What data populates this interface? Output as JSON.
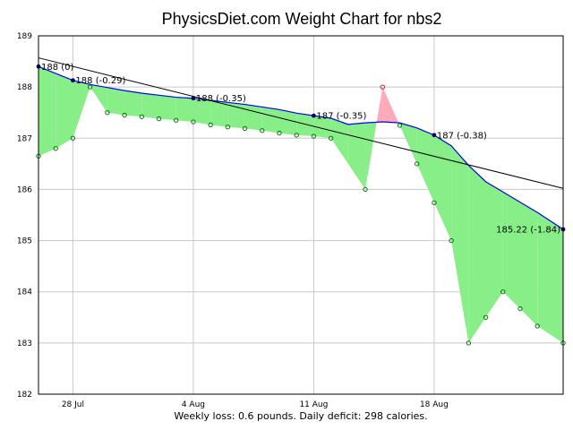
{
  "chart_data": {
    "type": "line",
    "title": "PhysicsDiet.com Weight Chart for nbs2",
    "footer": "Weekly loss: 0.6 pounds. Daily deficit: 298 calories.",
    "ylim": [
      182,
      189
    ],
    "xlim": [
      0,
      30.5
    ],
    "y_ticks": [
      "182",
      "183",
      "184",
      "185",
      "186",
      "187",
      "188",
      "189"
    ],
    "x_ticks": [
      {
        "day": 2,
        "label": "28 Jul"
      },
      {
        "day": 9,
        "label": "4 Aug"
      },
      {
        "day": 16,
        "label": "11 Aug"
      },
      {
        "day": 23,
        "label": "18 Aug"
      }
    ],
    "colors": {
      "trend": "#0000ff",
      "below_fill": "#88ee88",
      "above_fill": "#ffaab8",
      "weight_marker": "#006600",
      "above_marker": "#cc0000",
      "trend_dot": "#000066",
      "fit_line": "#000000",
      "grid": "#c8c8c8"
    },
    "series": [
      {
        "name": "Trend",
        "values": [
          [
            0,
            188.4
          ],
          [
            2,
            188.13
          ],
          [
            3,
            188.05
          ],
          [
            4,
            187.99
          ],
          [
            5,
            187.93
          ],
          [
            6,
            187.88
          ],
          [
            7,
            187.84
          ],
          [
            8,
            187.8
          ],
          [
            9,
            187.78
          ],
          [
            10,
            187.74
          ],
          [
            11,
            187.7
          ],
          [
            12,
            187.66
          ],
          [
            13,
            187.61
          ],
          [
            14,
            187.56
          ],
          [
            15,
            187.49
          ],
          [
            16,
            187.44
          ],
          [
            17,
            187.39
          ],
          [
            18,
            187.27
          ],
          [
            19,
            187.3
          ],
          [
            20,
            187.32
          ],
          [
            21,
            187.3
          ],
          [
            22,
            187.2
          ],
          [
            23,
            187.06
          ],
          [
            24,
            186.85
          ],
          [
            25,
            186.47
          ],
          [
            26,
            186.15
          ],
          [
            27,
            185.95
          ],
          [
            28,
            185.75
          ],
          [
            29,
            185.55
          ],
          [
            30.5,
            185.22
          ]
        ]
      },
      {
        "name": "Weight",
        "values": [
          [
            0,
            186.65
          ],
          [
            1,
            186.8
          ],
          [
            2,
            187.0
          ],
          [
            3,
            188.0
          ],
          [
            4,
            187.5
          ],
          [
            5,
            187.45
          ],
          [
            6,
            187.42
          ],
          [
            7,
            187.38
          ],
          [
            8,
            187.35
          ],
          [
            9,
            187.32
          ],
          [
            10,
            187.26
          ],
          [
            11,
            187.22
          ],
          [
            12,
            187.19
          ],
          [
            13,
            187.15
          ],
          [
            14,
            187.1
          ],
          [
            15,
            187.06
          ],
          [
            16,
            187.04
          ],
          [
            17,
            187.0
          ],
          [
            19,
            186.0
          ],
          [
            20,
            188.0
          ],
          [
            21,
            187.25
          ],
          [
            22,
            186.5
          ],
          [
            23,
            185.74
          ],
          [
            24,
            185.0
          ],
          [
            25,
            183.0
          ],
          [
            26,
            183.5
          ],
          [
            27,
            184.0
          ],
          [
            28,
            183.67
          ],
          [
            29,
            183.33
          ],
          [
            30.5,
            183.0
          ]
        ]
      },
      {
        "name": "Linear fit",
        "values": [
          [
            0,
            188.57
          ],
          [
            30.5,
            186.02
          ]
        ]
      }
    ],
    "annotations": [
      {
        "x": 0,
        "y": 188.4,
        "text": "188 (0)"
      },
      {
        "x": 2,
        "y": 188.13,
        "text": "188 (-0.29)"
      },
      {
        "x": 9,
        "y": 187.78,
        "text": "188 (-0.35)"
      },
      {
        "x": 16,
        "y": 187.44,
        "text": "187 (-0.35)"
      },
      {
        "x": 23,
        "y": 187.06,
        "text": "187 (-0.38)"
      },
      {
        "x": 30.5,
        "y": 185.22,
        "text": "185.22 (-1.84)",
        "align": "right"
      }
    ]
  }
}
